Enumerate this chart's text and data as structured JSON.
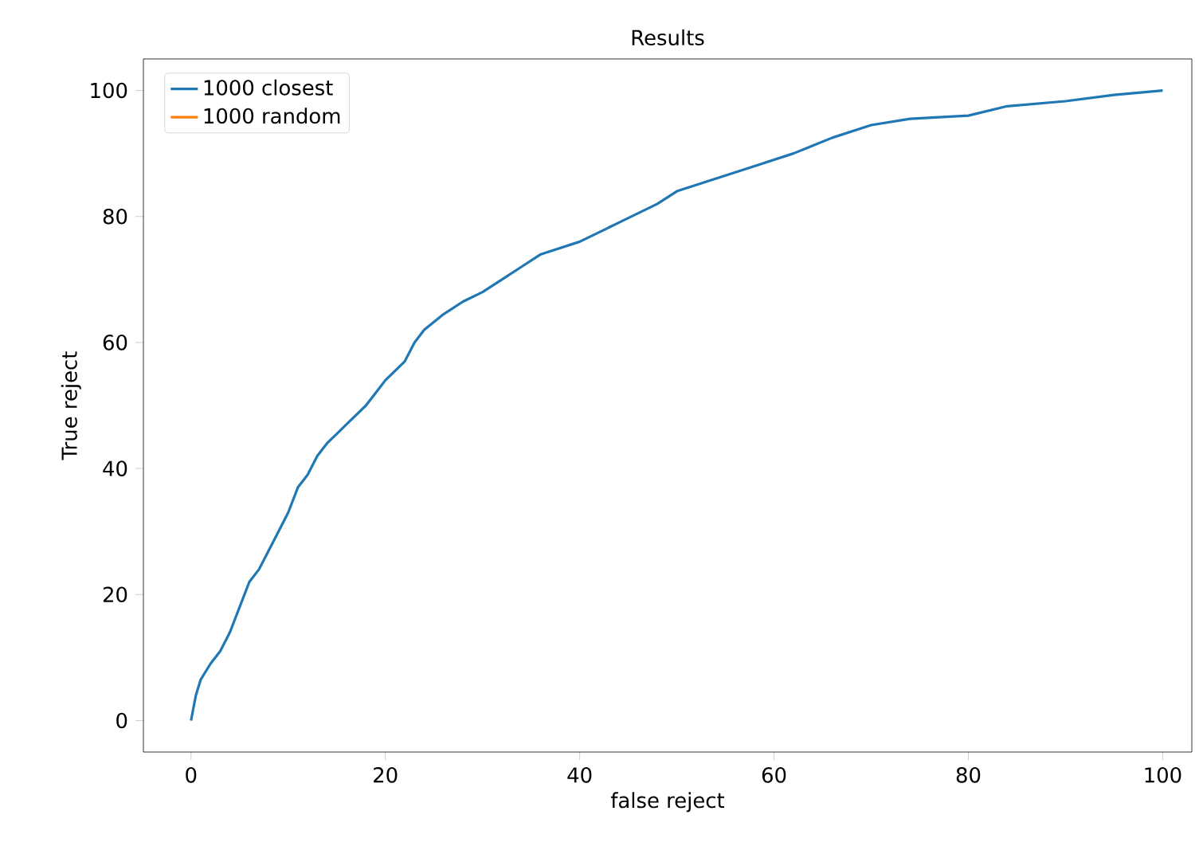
{
  "chart_data": {
    "type": "line",
    "title": "Results",
    "xlabel": "false reject",
    "ylabel": "True reject",
    "x": [
      0,
      0.5,
      1,
      2,
      3,
      4,
      5,
      6,
      7,
      8,
      9,
      10,
      11,
      12,
      13,
      14,
      15,
      16,
      18,
      19,
      20,
      22,
      23,
      24,
      26,
      28,
      30,
      32,
      34,
      36,
      40,
      44,
      48,
      50,
      54,
      58,
      62,
      66,
      70,
      74,
      80,
      84,
      90,
      95,
      100
    ],
    "series": [
      {
        "name": "1000 closest",
        "color": "#1f77b4",
        "values": [
          0,
          4,
          6.5,
          9,
          11,
          14,
          18,
          22,
          24,
          27,
          30,
          33,
          37,
          39,
          42,
          44,
          45.5,
          47,
          50,
          52,
          54,
          57,
          60,
          62,
          64.5,
          66.5,
          68,
          70,
          72,
          74,
          76,
          79,
          82,
          84,
          86,
          88,
          90,
          92.5,
          94.5,
          95.5,
          96,
          97.5,
          98.3,
          99.3,
          100
        ]
      },
      {
        "name": "1000 random",
        "color": "#ff7f0e",
        "values": [
          null,
          null,
          null,
          null,
          null,
          null,
          null,
          null,
          null,
          null,
          null,
          null,
          null,
          null,
          null,
          null,
          null,
          null,
          null,
          null,
          null,
          null,
          null,
          null,
          null,
          null,
          null,
          null,
          null,
          null,
          null,
          null,
          null,
          null,
          null,
          null,
          null,
          null,
          null,
          null,
          null,
          null,
          null,
          null,
          null
        ]
      }
    ],
    "xlim": [
      -4.9,
      103
    ],
    "ylim": [
      -5,
      105
    ],
    "xticks": [
      0,
      20,
      40,
      60,
      80,
      100
    ],
    "yticks": [
      0,
      20,
      40,
      60,
      80,
      100
    ],
    "grid": false,
    "legend": "top left"
  }
}
